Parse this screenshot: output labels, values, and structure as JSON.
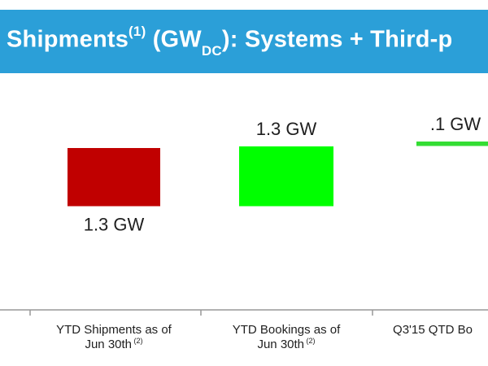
{
  "header": {
    "title_main": "Shipments",
    "title_sup": "(1)",
    "title_unit_open": " (GW",
    "title_unit_sub": "DC",
    "title_rest": "): Systems + Third-p"
  },
  "colors": {
    "title_bar": "#2b9fd8",
    "bar_shipments": "#c00000",
    "bar_bookings": "#00ff00",
    "bar_qtd": "#33dd33",
    "axis": "#999999"
  },
  "chart_data": {
    "type": "bar",
    "subtype": "waterfall",
    "title": "Shipments(1) (GWDC): Systems + Third-p",
    "categories": [
      {
        "lines": [
          "YTD Shipments as of",
          "Jun 30th"
        ],
        "footnote": "(2)"
      },
      {
        "lines": [
          "YTD Bookings as of",
          "Jun 30th"
        ],
        "footnote": "(2)"
      },
      {
        "lines": [
          "Q3'15 QTD Bo",
          ""
        ],
        "footnote": ""
      }
    ],
    "values": [
      1.3,
      1.3,
      0.1
    ],
    "labels": [
      "1.3 GW",
      "1.3 GW",
      ".1 GW"
    ],
    "label_positions": [
      "below",
      "above",
      "above"
    ],
    "bar_colors": [
      "#c00000",
      "#00ff00",
      "#33dd33"
    ],
    "unit": "GW"
  }
}
